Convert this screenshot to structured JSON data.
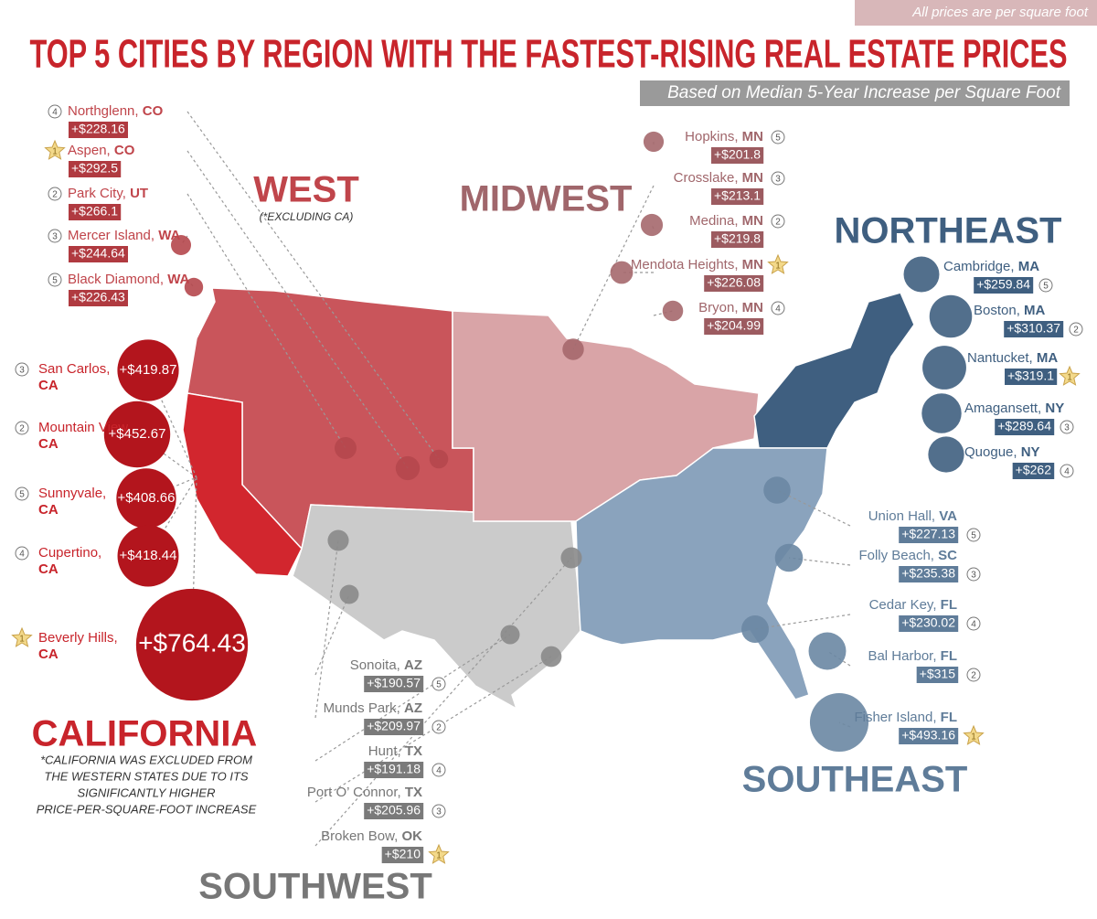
{
  "header": {
    "note": "All prices are per square foot",
    "title": "TOP 5 CITIES BY REGION WITH THE FASTEST-RISING REAL ESTATE PRICES",
    "subtitle": "Based on Median 5-Year Increase per Square Foot"
  },
  "regions": [
    {
      "name": "WEST",
      "note": "(*EXCLUDING CA)",
      "cities": [
        {
          "rank": 4,
          "name": "Northglenn,",
          "state": "CO",
          "price": 228.16,
          "price_label": "+$228.16"
        },
        {
          "rank": 1,
          "name": "Aspen,",
          "state": "CO",
          "price": 292.5,
          "price_label": "+$292.5"
        },
        {
          "rank": 2,
          "name": "Park City,",
          "state": "UT",
          "price": 266.1,
          "price_label": "+$266.1"
        },
        {
          "rank": 3,
          "name": "Mercer Island,",
          "state": "WA",
          "price": 244.64,
          "price_label": "+$244.64"
        },
        {
          "rank": 5,
          "name": "Black Diamond,",
          "state": "WA",
          "price": 226.43,
          "price_label": "+$226.43"
        }
      ]
    },
    {
      "name": "CALIFORNIA",
      "note": [
        "*CALIFORNIA WAS EXCLUDED FROM",
        "THE WESTERN STATES DUE TO ITS",
        "SIGNIFICANTLY HIGHER",
        "PRICE-PER-SQUARE-FOOT INCREASE"
      ],
      "cities": [
        {
          "rank": 3,
          "name": "San Carlos,",
          "state": "CA",
          "price": 419.87,
          "price_label": "+$419.87"
        },
        {
          "rank": 2,
          "name": "Mountain View,",
          "state": "CA",
          "price": 452.67,
          "price_label": "+$452.67"
        },
        {
          "rank": 5,
          "name": "Sunnyvale,",
          "state": "CA",
          "price": 408.66,
          "price_label": "+$408.66"
        },
        {
          "rank": 4,
          "name": "Cupertino,",
          "state": "CA",
          "price": 418.44,
          "price_label": "+$418.44"
        },
        {
          "rank": 1,
          "name": "Beverly Hills,",
          "state": "CA",
          "price": 764.43,
          "price_label": "+$764.43"
        }
      ]
    },
    {
      "name": "MIDWEST",
      "cities": [
        {
          "rank": 5,
          "name": "Hopkins,",
          "state": "MN",
          "price": 201.8,
          "price_label": "+$201.8"
        },
        {
          "rank": 3,
          "name": "Crosslake,",
          "state": "MN",
          "price": 213.1,
          "price_label": "+$213.1"
        },
        {
          "rank": 2,
          "name": "Medina,",
          "state": "MN",
          "price": 219.8,
          "price_label": "+$219.8"
        },
        {
          "rank": 1,
          "name": "Mendota Heights,",
          "state": "MN",
          "price": 226.08,
          "price_label": "+$226.08"
        },
        {
          "rank": 4,
          "name": "Bryon,",
          "state": "MN",
          "price": 204.99,
          "price_label": "+$204.99"
        }
      ]
    },
    {
      "name": "NORTHEAST",
      "cities": [
        {
          "rank": 5,
          "name": "Cambridge,",
          "state": "MA",
          "price": 259.84,
          "price_label": "+$259.84"
        },
        {
          "rank": 2,
          "name": "Boston,",
          "state": "MA",
          "price": 310.37,
          "price_label": "+$310.37"
        },
        {
          "rank": 1,
          "name": "Nantucket,",
          "state": "MA",
          "price": 319.1,
          "price_label": "+$319.1"
        },
        {
          "rank": 3,
          "name": "Amagansett,",
          "state": "NY",
          "price": 289.64,
          "price_label": "+$289.64"
        },
        {
          "rank": 4,
          "name": "Quogue,",
          "state": "NY",
          "price": 262,
          "price_label": "+$262"
        }
      ]
    },
    {
      "name": "SOUTHEAST",
      "cities": [
        {
          "rank": 5,
          "name": "Union Hall,",
          "state": "VA",
          "price": 227.13,
          "price_label": "+$227.13"
        },
        {
          "rank": 3,
          "name": "Folly Beach,",
          "state": "SC",
          "price": 235.38,
          "price_label": "+$235.38"
        },
        {
          "rank": 4,
          "name": "Cedar Key,",
          "state": "FL",
          "price": 230.02,
          "price_label": "+$230.02"
        },
        {
          "rank": 2,
          "name": "Bal Harbor,",
          "state": "FL",
          "price": 315,
          "price_label": "+$315"
        },
        {
          "rank": 1,
          "name": "Fisher Island,",
          "state": "FL",
          "price": 493.16,
          "price_label": "+$493.16"
        }
      ]
    },
    {
      "name": "SOUTHWEST",
      "cities": [
        {
          "rank": 5,
          "name": "Sonoita,",
          "state": "AZ",
          "price": 190.57,
          "price_label": "+$190.57"
        },
        {
          "rank": 2,
          "name": "Munds Park,",
          "state": "AZ",
          "price": 209.97,
          "price_label": "+$209.97"
        },
        {
          "rank": 4,
          "name": "Hunt,",
          "state": "TX",
          "price": 191.18,
          "price_label": "+$191.18"
        },
        {
          "rank": 3,
          "name": "Port O’ Connor,",
          "state": "TX",
          "price": 205.96,
          "price_label": "+$205.96"
        },
        {
          "rank": 1,
          "name": "Broken Bow,",
          "state": "OK",
          "price": 210,
          "price_label": "+$210"
        }
      ]
    }
  ]
}
